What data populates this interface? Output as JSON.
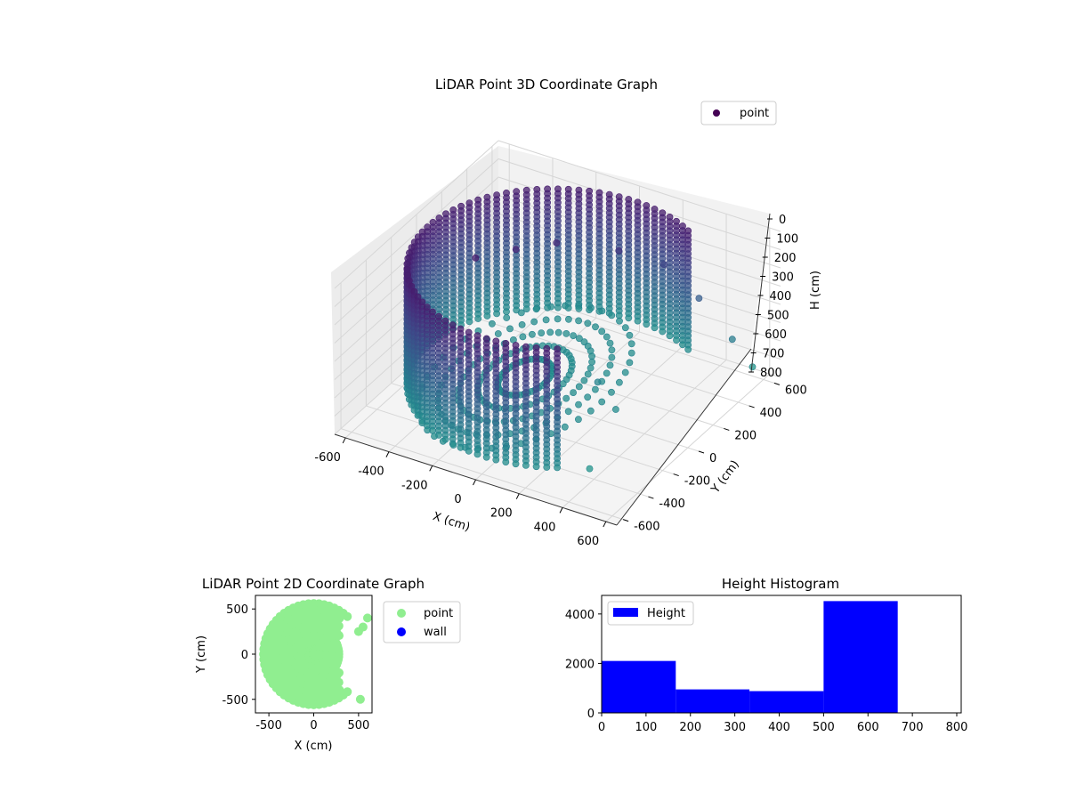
{
  "chart_data": [
    {
      "type": "scatter",
      "projection": "3d",
      "title": "LiDAR Point 3D Coordinate Graph",
      "xlabel": "X (cm)",
      "ylabel": "Y (cm)",
      "zlabel": "H (cm)",
      "xlim": [
        -650,
        650
      ],
      "ylim": [
        -650,
        650
      ],
      "zlim": [
        800,
        0
      ],
      "xticks": [
        -600,
        -400,
        -200,
        0,
        200,
        400,
        600
      ],
      "yticks": [
        -600,
        -400,
        -200,
        0,
        200,
        400,
        600
      ],
      "zticks": [
        0,
        100,
        200,
        300,
        400,
        500,
        600,
        700,
        800
      ],
      "grid": true,
      "legend_position": "top-right",
      "colormap": "viridis",
      "series": [
        {
          "name": "point",
          "description": "cylindrical wall of radius ~600 cm, heights 50-700 cm",
          "wall_radius": 600,
          "wall_height_range": [
            50,
            700
          ],
          "wall_angle_range_deg": [
            60,
            300
          ],
          "floor_height": 700,
          "cluster_points": [
            {
              "x": -320,
              "y": -100,
              "h": 50
            },
            {
              "x": -250,
              "y": 100,
              "h": 100
            },
            {
              "x": -150,
              "y": 250,
              "h": 120
            },
            {
              "x": 50,
              "y": 400,
              "h": 180
            },
            {
              "x": 200,
              "y": 500,
              "h": 260
            },
            {
              "x": 350,
              "y": 520,
              "h": 400
            },
            {
              "x": 480,
              "y": 560,
              "h": 600
            },
            {
              "x": 550,
              "y": 600,
              "h": 750
            },
            {
              "x": 150,
              "y": 60,
              "h": 650
            },
            {
              "x": 280,
              "y": -20,
              "h": 700
            },
            {
              "x": 380,
              "y": -400,
              "h": 750
            }
          ]
        }
      ]
    },
    {
      "type": "scatter",
      "title": "LiDAR Point 2D Coordinate Graph",
      "xlabel": "X (cm)",
      "ylabel": "Y (cm)",
      "xlim": [
        -650,
        650
      ],
      "ylim": [
        -650,
        650
      ],
      "xticks": [
        -500,
        0,
        500
      ],
      "yticks": [
        -500,
        0,
        500
      ],
      "legend_position": "right-outside",
      "series": [
        {
          "name": "point",
          "color": "#90ee90",
          "shape": "filled disc of radius ~600 cm, cut off on the right side"
        },
        {
          "name": "wall",
          "color": "#0000ff",
          "values": []
        }
      ]
    },
    {
      "type": "bar",
      "title": "Height Histogram",
      "xlabel": "",
      "ylabel": "",
      "legend_position": "top-left",
      "series": [
        {
          "name": "Height",
          "color": "#0000ff",
          "bins": [
            {
              "from": 0,
              "to": 167,
              "count": 2100
            },
            {
              "from": 167,
              "to": 333,
              "count": 950
            },
            {
              "from": 333,
              "to": 500,
              "count": 880
            },
            {
              "from": 500,
              "to": 667,
              "count": 4520
            }
          ]
        }
      ],
      "xlim": [
        0,
        810
      ],
      "ylim": [
        0,
        4750
      ],
      "xticks": [
        0,
        100,
        200,
        300,
        400,
        500,
        600,
        700,
        800
      ],
      "yticks": [
        0,
        2000,
        4000
      ]
    }
  ]
}
